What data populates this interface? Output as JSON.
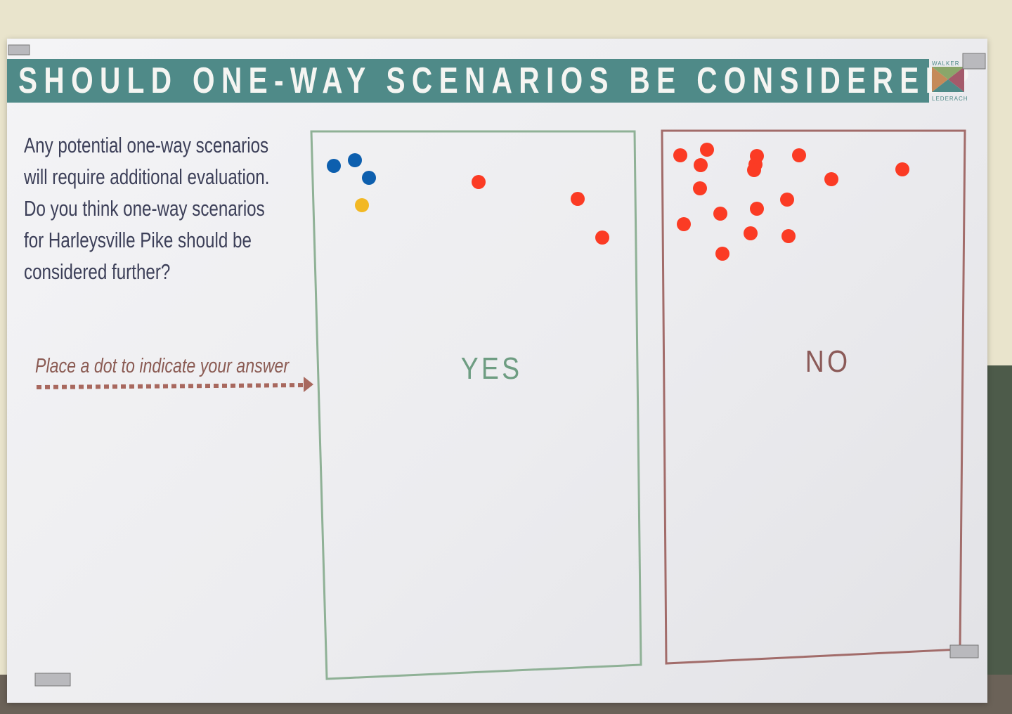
{
  "header": {
    "title": "SHOULD ONE-WAY SCENARIOS BE CONSIDERED?"
  },
  "logo": {
    "top": "WALKER",
    "bottom": "LEDERACH"
  },
  "question": {
    "lines": [
      "Any potential one-way scenarios",
      "will require additional evaluation.",
      "Do you think one-way scenarios",
      "for Harleysville Pike should be",
      "considered further?"
    ]
  },
  "instruction": "Place a dot to indicate your answer",
  "options": [
    "YES",
    "NO"
  ]
}
